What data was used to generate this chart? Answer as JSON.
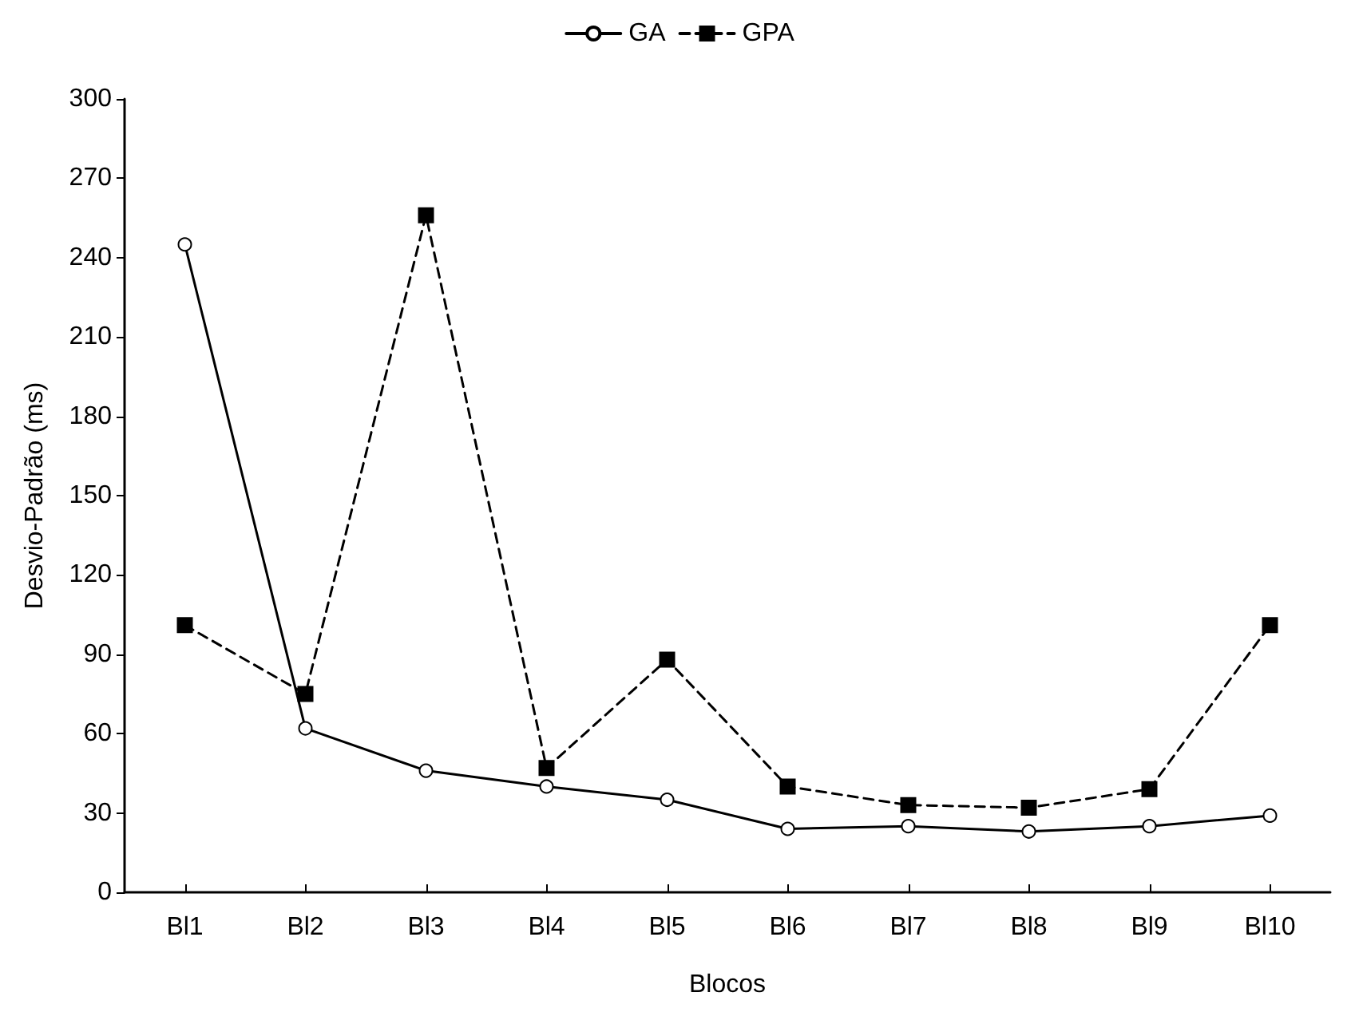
{
  "chart_data": {
    "type": "line",
    "xlabel": "Blocos",
    "ylabel": "Desvio-Padrão (ms)",
    "categories": [
      "Bl1",
      "Bl2",
      "Bl3",
      "Bl4",
      "Bl5",
      "Bl6",
      "Bl7",
      "Bl8",
      "Bl9",
      "Bl10"
    ],
    "series": [
      {
        "name": "GA",
        "color": "#000000",
        "marker": "circle",
        "line_style": "solid",
        "values": [
          245,
          62,
          46,
          40,
          35,
          24,
          25,
          23,
          25,
          29
        ]
      },
      {
        "name": "GPA",
        "color": "#000000",
        "marker": "square",
        "line_style": "dashed",
        "values": [
          101,
          75,
          256,
          47,
          88,
          40,
          33,
          32,
          39,
          101
        ]
      }
    ],
    "ylim": [
      0,
      300
    ],
    "yticks": [
      0,
      30,
      60,
      90,
      120,
      150,
      180,
      210,
      240,
      270,
      300
    ],
    "grid": false,
    "legend": "top"
  }
}
